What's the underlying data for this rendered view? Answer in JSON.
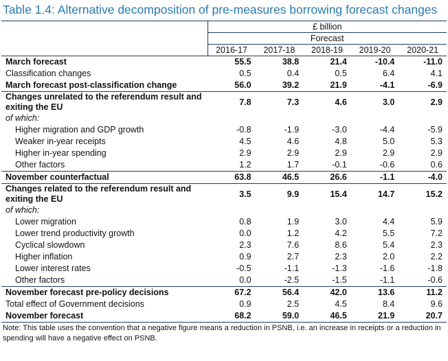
{
  "title": "Table 1.4: Alternative decomposition of pre-measures borrowing forecast changes",
  "header": {
    "unit": "£ billion",
    "group": "Forecast",
    "columns": [
      "2016-17",
      "2017-18",
      "2018-19",
      "2019-20",
      "2020-21"
    ]
  },
  "table": {
    "rows": [
      {
        "label": "March forecast",
        "values": [
          "55.5",
          "38.8",
          "21.4",
          "-10.4",
          "-11.0"
        ]
      },
      {
        "label": "Classification changes",
        "values": [
          "0.5",
          "0.4",
          "0.5",
          "6.4",
          "4.1"
        ]
      },
      {
        "label": "March forecast post-classification change",
        "values": [
          "56.0",
          "39.2",
          "21.9",
          "-4.1",
          "-6.9"
        ]
      },
      {
        "label": "Changes unrelated to the referendum result and exiting the EU",
        "values": [
          "7.8",
          "7.3",
          "4.6",
          "3.0",
          "2.9"
        ]
      },
      {
        "label": "of which:"
      },
      {
        "label": "Higher migration and GDP growth",
        "values": [
          "-0.8",
          "-1.9",
          "-3.0",
          "-4.4",
          "-5.9"
        ]
      },
      {
        "label": "Weaker in-year receipts",
        "values": [
          "4.5",
          "4.6",
          "4.8",
          "5.0",
          "5.3"
        ]
      },
      {
        "label": "Higher in-year spending",
        "values": [
          "2.9",
          "2.9",
          "2.9",
          "2.9",
          "2.9"
        ]
      },
      {
        "label": "Other factors",
        "values": [
          "1.2",
          "1.7",
          "-0.1",
          "-0.6",
          "0.6"
        ]
      },
      {
        "label": "November counterfactual",
        "values": [
          "63.8",
          "46.5",
          "26.6",
          "-1.1",
          "-4.0"
        ]
      },
      {
        "label": "Changes related to the referendum result and exiting the EU",
        "values": [
          "3.5",
          "9.9",
          "15.4",
          "14.7",
          "15.2"
        ]
      },
      {
        "label": "of which:"
      },
      {
        "label": "Lower migration",
        "values": [
          "0.8",
          "1.9",
          "3.0",
          "4.4",
          "5.9"
        ]
      },
      {
        "label": "Lower trend productivity growth",
        "values": [
          "0.0",
          "1.2",
          "4.2",
          "5.5",
          "7.2"
        ]
      },
      {
        "label": "Cyclical slowdown",
        "values": [
          "2.3",
          "7.6",
          "8.6",
          "5.4",
          "2.3"
        ]
      },
      {
        "label": "Higher inflation",
        "values": [
          "0.9",
          "2.7",
          "2.3",
          "2.0",
          "2.2"
        ]
      },
      {
        "label": "Lower interest rates",
        "values": [
          "-0.5",
          "-1.1",
          "-1.3",
          "-1.6",
          "-1.8"
        ]
      },
      {
        "label": "Other factors",
        "values": [
          "0.0",
          "-2.5",
          "-1.5",
          "-1.1",
          "-0.6"
        ]
      },
      {
        "label": "November forecast pre-policy decisions",
        "values": [
          "67.2",
          "56.4",
          "42.0",
          "13.6",
          "11.2"
        ]
      },
      {
        "label": "Total effect of Government decisions",
        "values": [
          "0.9",
          "2.5",
          "4.5",
          "8.4",
          "9.6"
        ]
      },
      {
        "label": "November forecast",
        "values": [
          "68.2",
          "59.0",
          "46.5",
          "21.9",
          "20.7"
        ]
      }
    ]
  },
  "note": "Note: This table uses the convention that a negative figure means a reduction in PSNB, i.e. an increase in receipts or a reduction in spending will have a negative effect on PSNB."
}
